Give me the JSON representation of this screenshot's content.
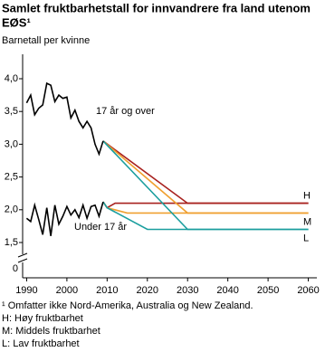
{
  "chart_data": {
    "type": "line",
    "title_lines": [
      "Samlet fruktbarhetstall for innvandrere fra land utenom",
      "EØS¹"
    ],
    "y_label": "Barnetall per kvinne",
    "x": [
      1990,
      1991,
      1992,
      1993,
      1994,
      1995,
      1996,
      1997,
      1998,
      1999,
      2000,
      2001,
      2002,
      2003,
      2004,
      2005,
      2006,
      2007,
      2008,
      2009
    ],
    "series": [
      {
        "name": "17 år og over",
        "color": "#000000",
        "values": [
          3.63,
          3.75,
          3.45,
          3.55,
          3.6,
          3.93,
          3.9,
          3.65,
          3.75,
          3.7,
          3.72,
          3.4,
          3.52,
          3.35,
          3.25,
          3.35,
          3.25,
          3.0,
          2.85,
          3.05
        ]
      },
      {
        "name": "Under 17 år",
        "color": "#000000",
        "values": [
          1.87,
          1.82,
          2.07,
          1.85,
          1.62,
          2.03,
          1.6,
          2.07,
          1.78,
          1.9,
          2.05,
          1.92,
          2.0,
          1.88,
          2.07,
          1.87,
          2.05,
          2.07,
          1.9,
          2.12
        ]
      }
    ],
    "projections": [
      {
        "name": "H",
        "color": "#a8211e",
        "upper": {
          "x": [
            2009,
            2030,
            2060
          ],
          "values": [
            3.05,
            2.1,
            2.1
          ]
        },
        "lower": {
          "x": [
            2009,
            2010,
            2012,
            2060
          ],
          "values": [
            2.12,
            2.03,
            2.1,
            2.1
          ]
        }
      },
      {
        "name": "M",
        "color": "#f0a030",
        "upper": {
          "x": [
            2009,
            2030,
            2060
          ],
          "values": [
            3.05,
            1.95,
            1.95
          ]
        },
        "lower": {
          "x": [
            2009,
            2010,
            2015,
            2060
          ],
          "values": [
            2.12,
            2.03,
            1.95,
            1.95
          ]
        }
      },
      {
        "name": "L",
        "color": "#1a9e9e",
        "upper": {
          "x": [
            2009,
            2030,
            2060
          ],
          "values": [
            3.05,
            1.7,
            1.7
          ]
        },
        "lower": {
          "x": [
            2009,
            2010,
            2020,
            2060
          ],
          "values": [
            2.12,
            2.03,
            1.7,
            1.7
          ]
        }
      }
    ],
    "xlim": [
      1989,
      2061
    ],
    "xticks": [
      1990,
      2000,
      2010,
      2020,
      2030,
      2040,
      2050,
      2060
    ],
    "ylim": [
      1.5,
      4.0
    ],
    "yticks": [
      {
        "value": 1.5,
        "label": "1,5"
      },
      {
        "value": 2.0,
        "label": "2,0"
      },
      {
        "value": 2.5,
        "label": "2,5"
      },
      {
        "value": 3.0,
        "label": "3,0"
      },
      {
        "value": 3.5,
        "label": "3,5"
      },
      {
        "value": 4.0,
        "label": "4,0"
      }
    ],
    "ybreak_label": "0",
    "notes": [
      "¹ Omfatter ikke Nord-Amerika, Australia og New Zealand.",
      "H: Høy fruktbarhet",
      "M: Middels fruktbarhet",
      "L: Lav fruktbarhet"
    ]
  }
}
